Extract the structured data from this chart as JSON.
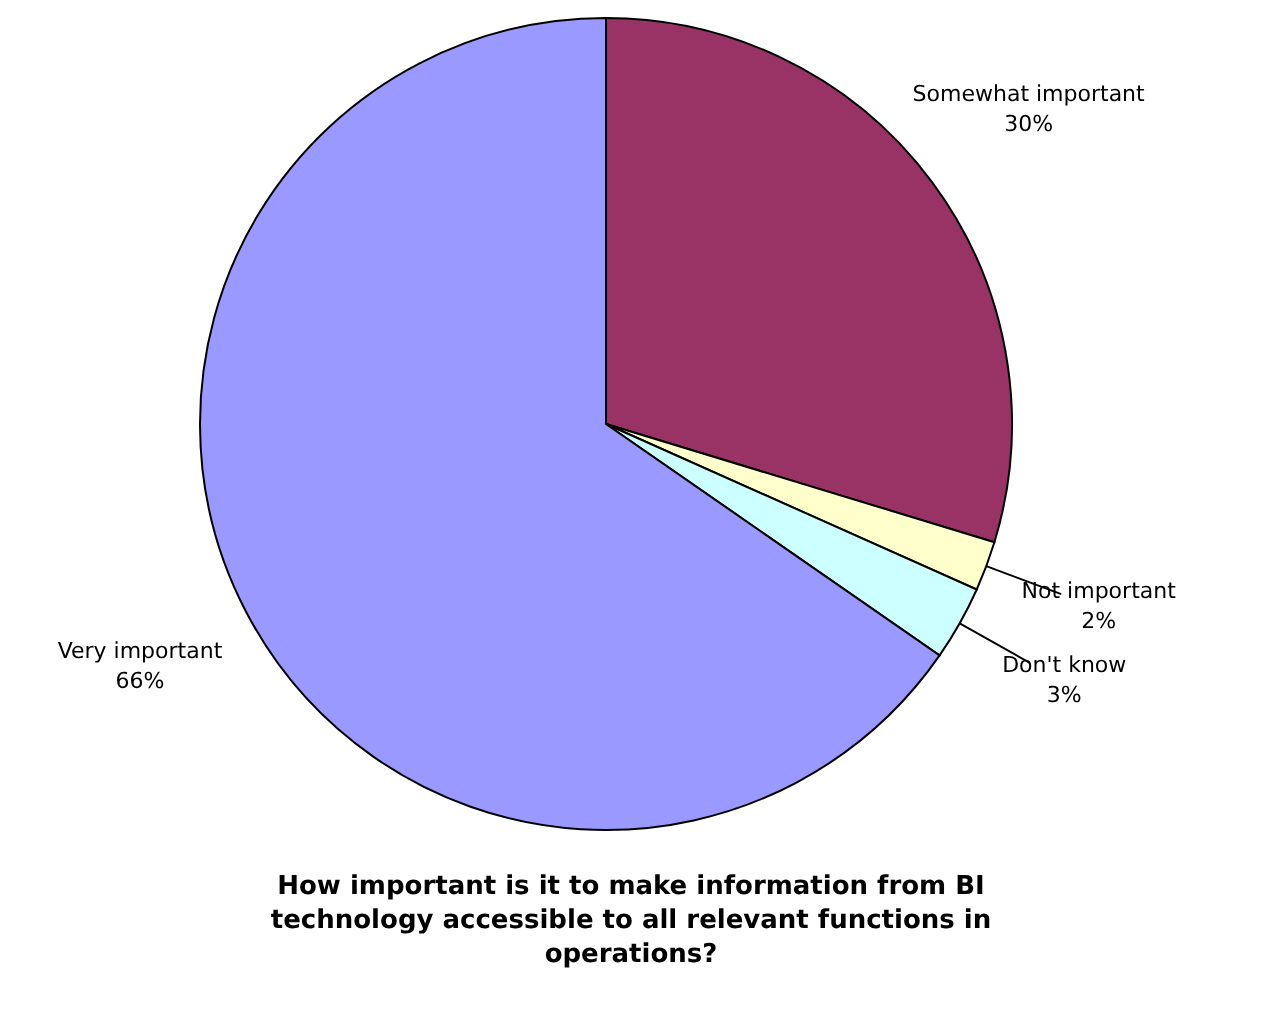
{
  "chart_data": {
    "type": "pie",
    "title": [
      "How important is it to make information from BI",
      "technology accessible to all relevant functions in",
      "operations?"
    ],
    "categories": [
      "Somewhat important",
      "Not important",
      "Don't know",
      "Very important"
    ],
    "values": [
      30,
      2,
      3,
      66
    ],
    "value_labels": [
      "30%",
      "2%",
      "3%",
      "66%"
    ],
    "colors": [
      "#993366",
      "#ffffcc",
      "#ccffff",
      "#9999ff"
    ],
    "legend": false
  }
}
